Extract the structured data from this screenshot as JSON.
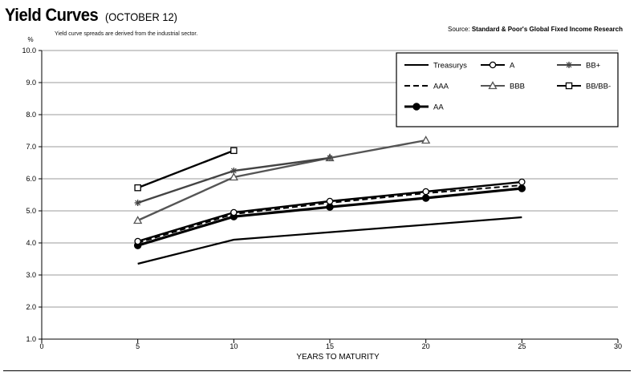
{
  "header": {
    "title": "Yield Curves",
    "date": "(OCTOBER 12)",
    "subtitle": "Yield curve spreads are derived from the industrial sector.",
    "source_label": "Source:",
    "source_name": "Standard & Poor's Global Fixed Income Research"
  },
  "chart_data": {
    "type": "line",
    "title": "Yield Curves",
    "subtitle": "Yield curve spreads are derived from the industrial sector.",
    "xlabel": "YEARS TO MATURITY",
    "ylabel": "%",
    "xlim": [
      0,
      30
    ],
    "ylim": [
      1.0,
      10.0
    ],
    "xticks": [
      "0",
      "5",
      "10",
      "15",
      "20",
      "25",
      "30"
    ],
    "yticks": [
      "1.0",
      "2.0",
      "3.0",
      "4.0",
      "5.0",
      "6.0",
      "7.0",
      "8.0",
      "9.0",
      "10.0"
    ],
    "grid": "horizontal",
    "legend": "top-right",
    "series": [
      {
        "name": "Treasurys",
        "marker": "none",
        "dash": "solid",
        "color": "#000000",
        "x": [
          5,
          10,
          25
        ],
        "y": [
          3.35,
          4.1,
          4.8
        ]
      },
      {
        "name": "AAA",
        "marker": "none",
        "dash": "dashed",
        "color": "#000000",
        "x": [
          5,
          10,
          15,
          20,
          25
        ],
        "y": [
          4.0,
          4.9,
          5.25,
          5.55,
          5.8
        ]
      },
      {
        "name": "AA",
        "marker": "filled-circle",
        "dash": "solid",
        "color": "#000000",
        "x": [
          5,
          10,
          15,
          20,
          25
        ],
        "y": [
          3.92,
          4.82,
          5.12,
          5.4,
          5.7
        ]
      },
      {
        "name": "A",
        "marker": "open-circle",
        "dash": "solid",
        "color": "#000000",
        "x": [
          5,
          10,
          15,
          20,
          25
        ],
        "y": [
          4.05,
          4.95,
          5.3,
          5.6,
          5.9
        ]
      },
      {
        "name": "BBB",
        "marker": "open-triangle",
        "dash": "solid",
        "color": "#555555",
        "x": [
          5,
          10,
          15,
          20
        ],
        "y": [
          4.7,
          6.05,
          6.65,
          7.2
        ]
      },
      {
        "name": "BB+",
        "marker": "star",
        "dash": "solid",
        "color": "#444444",
        "x": [
          5,
          10,
          15
        ],
        "y": [
          5.25,
          6.25,
          6.65
        ]
      },
      {
        "name": "BB/BB-",
        "marker": "open-square",
        "dash": "solid",
        "color": "#000000",
        "x": [
          5,
          10
        ],
        "y": [
          5.72,
          6.88
        ]
      }
    ]
  }
}
